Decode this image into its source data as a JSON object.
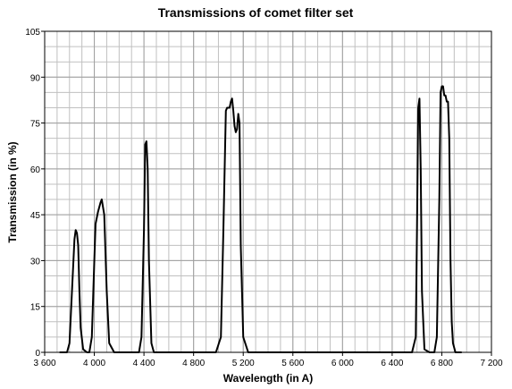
{
  "chart_data": {
    "type": "line",
    "title": "Transmissions of comet filter set",
    "x_label": "Wavelength (in A)",
    "y_label": "Transmission (in %)",
    "color": "#000000",
    "x": [
      3720,
      3780,
      3800,
      3820,
      3840,
      3850,
      3860,
      3870,
      3880,
      3890,
      3910,
      3940,
      3960,
      3980,
      4000,
      4010,
      4030,
      4050,
      4060,
      4080,
      4100,
      4120,
      4160,
      4360,
      4380,
      4400,
      4410,
      4420,
      4430,
      4440,
      4460,
      4480,
      4980,
      5020,
      5040,
      5060,
      5070,
      5090,
      5100,
      5110,
      5120,
      5130,
      5140,
      5150,
      5160,
      5170,
      5180,
      5200,
      5240,
      6560,
      6590,
      6600,
      6610,
      6620,
      6630,
      6640,
      6660,
      6700,
      6740,
      6760,
      6780,
      6790,
      6800,
      6810,
      6820,
      6830,
      6840,
      6850,
      6860,
      6870,
      6880,
      6890,
      6910,
      6960
    ],
    "values": [
      0,
      0,
      3,
      20,
      37,
      40,
      39,
      35,
      20,
      8,
      1,
      0,
      0,
      5,
      30,
      42,
      46,
      49,
      50,
      45,
      20,
      3,
      0,
      0,
      5,
      40,
      68,
      69,
      60,
      30,
      3,
      0,
      0,
      5,
      40,
      79,
      80,
      80,
      82,
      83,
      79,
      74,
      72,
      73,
      78,
      75,
      35,
      5,
      0,
      0,
      5,
      40,
      80,
      83,
      60,
      20,
      1,
      0,
      0,
      5,
      50,
      85,
      87,
      87,
      84,
      84,
      82,
      82,
      70,
      30,
      10,
      3,
      0,
      0
    ],
    "xlim": [
      3600,
      7200
    ],
    "xticks": [
      {
        "value": 3600,
        "label": "3 600"
      },
      {
        "value": 4000,
        "label": "4 000"
      },
      {
        "value": 4400,
        "label": "4 400"
      },
      {
        "value": 4800,
        "label": "4 800"
      },
      {
        "value": 5200,
        "label": "5 200"
      },
      {
        "value": 5600,
        "label": "5 600"
      },
      {
        "value": 6000,
        "label": "6 000"
      },
      {
        "value": 6400,
        "label": "6 400"
      },
      {
        "value": 6800,
        "label": "6 800"
      },
      {
        "value": 7200,
        "label": "7 200"
      }
    ],
    "ylim": [
      0,
      105
    ],
    "yticks": [
      0,
      15,
      30,
      45,
      60,
      75,
      90,
      105
    ],
    "grid": true,
    "x_minor": 4,
    "y_minor": 3
  }
}
